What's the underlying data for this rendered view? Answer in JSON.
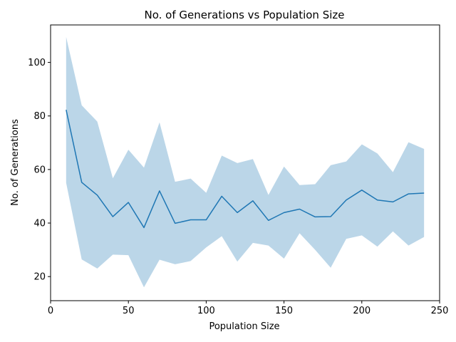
{
  "chart_data": {
    "type": "line",
    "title": "No. of Generations vs Population Size",
    "xlabel": "Population Size",
    "ylabel": "No. of Generations",
    "xlim": [
      0,
      250
    ],
    "ylim": [
      11,
      114
    ],
    "xticks": [
      0,
      50,
      100,
      150,
      200,
      250
    ],
    "yticks": [
      20,
      40,
      60,
      80,
      100
    ],
    "grid": false,
    "legend": "none",
    "colors": {
      "line": "#1f77b4",
      "band": "#1f77b4",
      "band_opacity": 0.3
    },
    "x": [
      10,
      20,
      30,
      40,
      50,
      60,
      70,
      80,
      90,
      100,
      110,
      120,
      130,
      140,
      150,
      160,
      170,
      180,
      190,
      200,
      210,
      220,
      230,
      240
    ],
    "series": [
      {
        "values": [
          82.3,
          55.2,
          50.4,
          42.4,
          47.7,
          38.3,
          52.0,
          39.9,
          41.2,
          41.2,
          50.0,
          43.9,
          48.3,
          41.0,
          43.9,
          45.2,
          42.3,
          42.4,
          48.6,
          52.3,
          48.6,
          47.9,
          50.9,
          51.2
        ],
        "upper": [
          109.5,
          84.0,
          77.9,
          56.7,
          67.4,
          60.7,
          77.6,
          55.4,
          56.6,
          51.3,
          65.2,
          62.4,
          63.9,
          50.5,
          61.1,
          54.2,
          54.5,
          61.6,
          63.0,
          69.4,
          66.0,
          59.0,
          70.2,
          67.7
        ],
        "lower": [
          55.0,
          26.4,
          23.0,
          28.2,
          28.0,
          16.0,
          26.3,
          24.6,
          25.8,
          30.9,
          35.1,
          25.6,
          32.6,
          31.6,
          26.7,
          36.2,
          30.0,
          23.3,
          34.1,
          35.4,
          31.2,
          36.9,
          31.6,
          34.8
        ]
      }
    ]
  }
}
